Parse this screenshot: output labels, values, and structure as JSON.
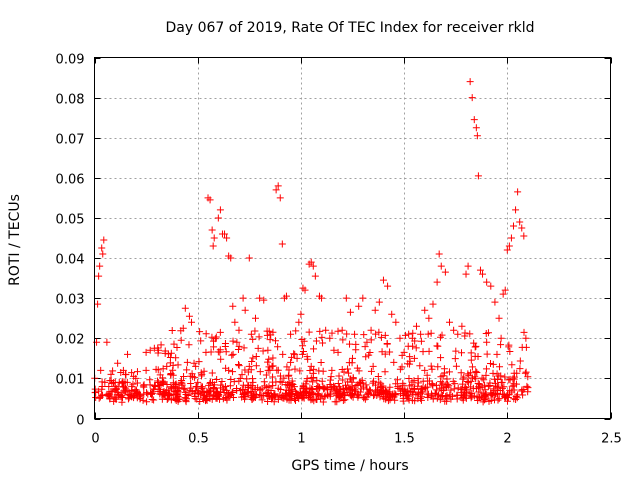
{
  "chart_data": {
    "type": "scatter",
    "title": "Day 067 of 2019, Rate Of TEC Index for receiver rkld",
    "xlabel": "GPS time / hours",
    "ylabel": "ROTI / TECUs",
    "xlim": [
      0,
      2.5
    ],
    "ylim": [
      0,
      0.09
    ],
    "xticks": [
      0,
      0.5,
      1,
      1.5,
      2,
      2.5
    ],
    "xtick_labels": [
      "0",
      "0.5",
      "1",
      "1.5",
      "2",
      "2.5"
    ],
    "yticks": [
      0,
      0.01,
      0.02,
      0.03,
      0.04,
      0.05,
      0.06,
      0.07,
      0.08,
      0.09
    ],
    "ytick_labels": [
      "0",
      "0.01",
      "0.02",
      "0.03",
      "0.04",
      "0.05",
      "0.06",
      "0.07",
      "0.08",
      "0.09"
    ],
    "grid": true,
    "marker": "+",
    "marker_color": "#ff0000",
    "series": [
      {
        "name": "ROTI",
        "points": [
          [
            0.005,
            0.0065
          ],
          [
            0.01,
            0.019
          ],
          [
            0.015,
            0.0285
          ],
          [
            0.02,
            0.0355
          ],
          [
            0.025,
            0.038
          ],
          [
            0.035,
            0.0425
          ],
          [
            0.04,
            0.041
          ],
          [
            0.045,
            0.0445
          ],
          [
            0.06,
            0.019
          ],
          [
            0.06,
            0.006
          ],
          [
            0.03,
            0.012
          ],
          [
            0.05,
            0.009
          ],
          [
            0.08,
            0.011
          ],
          [
            0.1,
            0.007
          ],
          [
            0.12,
            0.009
          ],
          [
            0.14,
            0.012
          ],
          [
            0.16,
            0.016
          ],
          [
            0.18,
            0.008
          ],
          [
            0.2,
            0.01
          ],
          [
            0.22,
            0.006
          ],
          [
            0.25,
            0.0165
          ],
          [
            0.27,
            0.017
          ],
          [
            0.29,
            0.0175
          ],
          [
            0.31,
            0.017
          ],
          [
            0.33,
            0.009
          ],
          [
            0.35,
            0.007
          ],
          [
            0.37,
            0.011
          ],
          [
            0.39,
            0.008
          ],
          [
            0.42,
            0.0195
          ],
          [
            0.43,
            0.0225
          ],
          [
            0.44,
            0.0275
          ],
          [
            0.46,
            0.0255
          ],
          [
            0.47,
            0.024
          ],
          [
            0.49,
            0.013
          ],
          [
            0.5,
            0.009
          ],
          [
            0.52,
            0.011
          ],
          [
            0.54,
            0.0165
          ],
          [
            0.55,
            0.055
          ],
          [
            0.56,
            0.0545
          ],
          [
            0.57,
            0.047
          ],
          [
            0.575,
            0.043
          ],
          [
            0.58,
            0.045
          ],
          [
            0.6,
            0.05
          ],
          [
            0.61,
            0.052
          ],
          [
            0.62,
            0.046
          ],
          [
            0.63,
            0.046
          ],
          [
            0.64,
            0.045
          ],
          [
            0.65,
            0.0405
          ],
          [
            0.66,
            0.04
          ],
          [
            0.67,
            0.028
          ],
          [
            0.68,
            0.024
          ],
          [
            0.69,
            0.019
          ],
          [
            0.7,
            0.022
          ],
          [
            0.72,
            0.03
          ],
          [
            0.73,
            0.027
          ],
          [
            0.75,
            0.04
          ],
          [
            0.76,
            0.021
          ],
          [
            0.78,
            0.025
          ],
          [
            0.8,
            0.03
          ],
          [
            0.82,
            0.0295
          ],
          [
            0.84,
            0.017
          ],
          [
            0.86,
            0.013
          ],
          [
            0.88,
            0.057
          ],
          [
            0.89,
            0.058
          ],
          [
            0.9,
            0.055
          ],
          [
            0.91,
            0.0435
          ],
          [
            0.92,
            0.03
          ],
          [
            0.93,
            0.0305
          ],
          [
            0.95,
            0.021
          ],
          [
            0.97,
            0.016
          ],
          [
            0.99,
            0.024
          ],
          [
            1.0,
            0.026
          ],
          [
            1.01,
            0.0325
          ],
          [
            1.02,
            0.032
          ],
          [
            1.04,
            0.0385
          ],
          [
            1.05,
            0.039
          ],
          [
            1.06,
            0.038
          ],
          [
            1.07,
            0.0355
          ],
          [
            1.09,
            0.0305
          ],
          [
            1.1,
            0.03
          ],
          [
            1.12,
            0.022
          ],
          [
            1.14,
            0.02
          ],
          [
            1.16,
            0.017
          ],
          [
            1.18,
            0.0165
          ],
          [
            1.2,
            0.022
          ],
          [
            1.22,
            0.03
          ],
          [
            1.24,
            0.0265
          ],
          [
            1.26,
            0.021
          ],
          [
            1.28,
            0.028
          ],
          [
            1.3,
            0.03
          ],
          [
            1.32,
            0.019
          ],
          [
            1.34,
            0.022
          ],
          [
            1.36,
            0.027
          ],
          [
            1.38,
            0.029
          ],
          [
            1.4,
            0.0345
          ],
          [
            1.42,
            0.033
          ],
          [
            1.44,
            0.026
          ],
          [
            1.46,
            0.024
          ],
          [
            1.48,
            0.02
          ],
          [
            1.5,
            0.0165
          ],
          [
            1.52,
            0.018
          ],
          [
            1.54,
            0.02
          ],
          [
            1.56,
            0.023
          ],
          [
            1.58,
            0.021
          ],
          [
            1.6,
            0.027
          ],
          [
            1.62,
            0.025
          ],
          [
            1.64,
            0.0285
          ],
          [
            1.66,
            0.034
          ],
          [
            1.67,
            0.041
          ],
          [
            1.68,
            0.038
          ],
          [
            1.7,
            0.0365
          ],
          [
            1.72,
            0.024
          ],
          [
            1.74,
            0.022
          ],
          [
            1.76,
            0.021
          ],
          [
            1.78,
            0.023
          ],
          [
            1.8,
            0.036
          ],
          [
            1.81,
            0.038
          ],
          [
            1.82,
            0.084
          ],
          [
            1.83,
            0.08
          ],
          [
            1.84,
            0.0745
          ],
          [
            1.85,
            0.0725
          ],
          [
            1.855,
            0.0705
          ],
          [
            1.86,
            0.0605
          ],
          [
            1.87,
            0.037
          ],
          [
            1.88,
            0.036
          ],
          [
            1.9,
            0.034
          ],
          [
            1.92,
            0.033
          ],
          [
            1.94,
            0.029
          ],
          [
            1.96,
            0.025
          ],
          [
            1.98,
            0.031
          ],
          [
            1.99,
            0.032
          ],
          [
            2.0,
            0.042
          ],
          [
            2.01,
            0.043
          ],
          [
            2.02,
            0.045
          ],
          [
            2.03,
            0.048
          ],
          [
            2.04,
            0.052
          ],
          [
            2.05,
            0.0565
          ],
          [
            2.06,
            0.049
          ],
          [
            2.07,
            0.0475
          ],
          [
            2.08,
            0.0455
          ],
          [
            2.09,
            0.02
          ],
          [
            2.095,
            0.008
          ],
          [
            1.95,
            0.016
          ],
          [
            1.97,
            0.02
          ],
          [
            1.9,
            0.019
          ],
          [
            1.6,
            0.012
          ],
          [
            1.55,
            0.015
          ],
          [
            1.45,
            0.014
          ],
          [
            1.35,
            0.013
          ],
          [
            1.25,
            0.015
          ],
          [
            1.15,
            0.012
          ],
          [
            1.05,
            0.013
          ],
          [
            0.95,
            0.014
          ],
          [
            0.85,
            0.012
          ],
          [
            0.75,
            0.013
          ],
          [
            0.65,
            0.012
          ],
          [
            0.45,
            0.014
          ],
          [
            0.35,
            0.013
          ],
          [
            0.25,
            0.012
          ],
          [
            0.15,
            0.011
          ]
        ]
      }
    ]
  }
}
